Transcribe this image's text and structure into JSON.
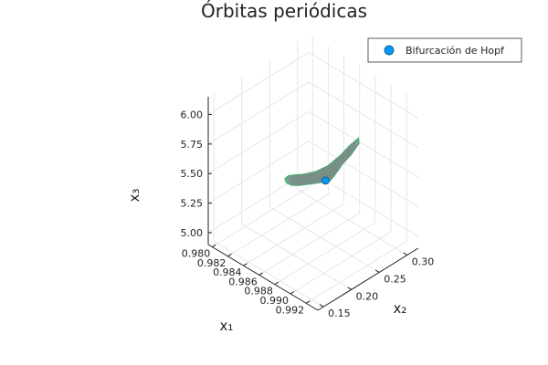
{
  "chart_data": {
    "type": "line3d",
    "title": "Órbitas periódicas",
    "xlabel": "x₁",
    "ylabel": "x₂",
    "zlabel": "x₃",
    "xlim": [
      0.9795,
      0.9935
    ],
    "ylim": [
      0.14,
      0.32
    ],
    "zlim": [
      4.9,
      6.15
    ],
    "xticks": [
      0.98,
      0.982,
      0.984,
      0.986,
      0.988,
      0.99,
      0.992
    ],
    "xtick_labels": [
      "0.980",
      "0.982",
      "0.984",
      "0.986",
      "0.988",
      "0.990",
      "0.992"
    ],
    "yticks": [
      0.15,
      0.2,
      0.25,
      0.3
    ],
    "ytick_labels": [
      "0.15",
      "0.20",
      "0.25",
      "0.30"
    ],
    "zticks": [
      5.0,
      5.25,
      5.5,
      5.75,
      6.0
    ],
    "ztick_labels": [
      "5.00",
      "5.25",
      "5.50",
      "5.75",
      "6.00"
    ],
    "grid": true,
    "legend": {
      "position": "top-right",
      "entries": [
        {
          "name": "Bifurcación de Hopf",
          "marker": "circle",
          "color": "#009AFA"
        }
      ]
    },
    "hopf_point": {
      "x": 0.9882,
      "y": 0.228,
      "z": 5.53
    },
    "orbit_color": "#7a8f86",
    "orbit_edge_color": "#3cb371",
    "orbit_curve": {
      "x": [
        0.9882,
        0.9886,
        0.989,
        0.9893,
        0.9894,
        0.9892,
        0.9888,
        0.9882,
        0.9874,
        0.9866,
        0.9858,
        0.9852,
        0.9849,
        0.985,
        0.9854,
        0.986,
        0.9867,
        0.9874,
        0.988,
        0.9884,
        0.9886,
        0.9888
      ],
      "y": [
        0.228,
        0.246,
        0.262,
        0.272,
        0.27,
        0.258,
        0.246,
        0.232,
        0.222,
        0.214,
        0.208,
        0.204,
        0.202,
        0.203,
        0.207,
        0.212,
        0.218,
        0.224,
        0.229,
        0.232,
        0.238,
        0.248
      ],
      "z": [
        5.53,
        5.6,
        5.68,
        5.76,
        5.81,
        5.78,
        5.71,
        5.64,
        5.59,
        5.56,
        5.54,
        5.52,
        5.49,
        5.46,
        5.44,
        5.45,
        5.47,
        5.49,
        5.51,
        5.52,
        5.56,
        5.62
      ]
    }
  }
}
